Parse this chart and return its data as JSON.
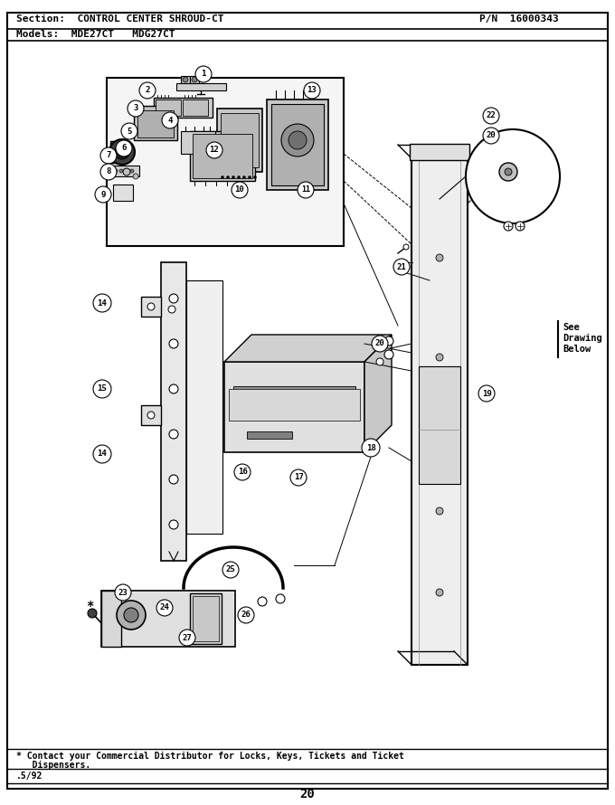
{
  "title_section": "Section:  CONTROL CENTER SHROUD-CT",
  "title_pn": "P/N  16000343",
  "models_line": "Models:  MDE27CT   MDG27CT",
  "footer_line1": "* Contact your Commercial Distributor for Locks, Keys, Tickets and Ticket",
  "footer_line2": "   Dispensers.",
  "footer_date": ".5/92",
  "page_number": "20",
  "see_drawing": "See\nDrawing\nBelow",
  "bg_color": "#ffffff",
  "border_color": "#000000",
  "text_color": "#000000"
}
